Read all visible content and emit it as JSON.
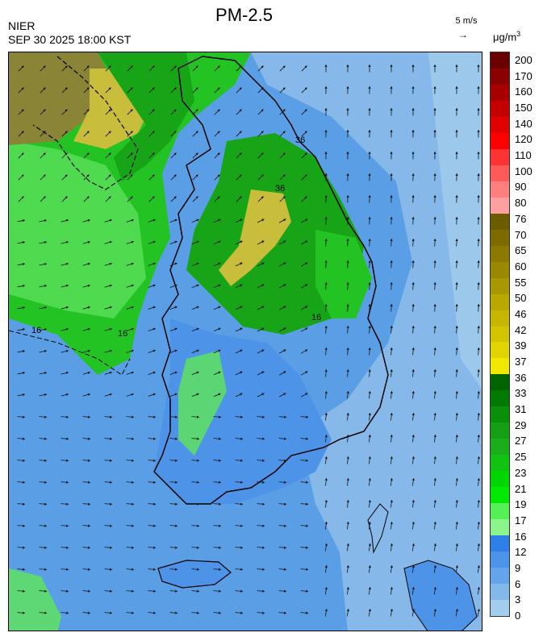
{
  "header": {
    "title": "PM-2.5",
    "org": "NIER",
    "datetime": "SEP 30 2025 18:00 KST",
    "wind_reference": "5 m/s",
    "wind_reference_arrow": "→",
    "unit_base": "μg/m",
    "unit_exp": "3"
  },
  "colorbar": {
    "levels": [
      "200",
      "170",
      "160",
      "150",
      "140",
      "120",
      "110",
      "100",
      "90",
      "80",
      "76",
      "70",
      "65",
      "60",
      "55",
      "50",
      "46",
      "42",
      "39",
      "37",
      "36",
      "33",
      "31",
      "29",
      "27",
      "25",
      "23",
      "21",
      "19",
      "17",
      "16",
      "12",
      "9",
      "6",
      "3",
      "0"
    ],
    "colors": [
      "#6b0000",
      "#8b0000",
      "#a80000",
      "#c40000",
      "#e00000",
      "#ff0000",
      "#ff3333",
      "#ff5a5a",
      "#ff7f7f",
      "#ffa0a0",
      "#6b5c00",
      "#7d6b00",
      "#8c7a00",
      "#9a8800",
      "#aa9800",
      "#b8a800",
      "#c6b600",
      "#d4c400",
      "#e2d400",
      "#f0e800",
      "#006400",
      "#007a00",
      "#0b8f0b",
      "#149f14",
      "#1aaf1a",
      "#12c212",
      "#00d600",
      "#00e900",
      "#55f055",
      "#8af58a",
      "#2e7fe8",
      "#4b94ea",
      "#64a4ea",
      "#82b8ea",
      "#a3cdec"
    ]
  },
  "map": {
    "contour_labels": [
      "16",
      "36",
      "36",
      "16",
      "16"
    ],
    "field_colors": {
      "sea": "#5a9fe6",
      "sea_light": "#86b9ea",
      "green_dark": "#17a517",
      "green": "#22c322",
      "green_light": "#5fe25f",
      "yellow": "#c9bd3c",
      "olive": "#8a8436",
      "land_blue": "#4d94e8"
    }
  }
}
